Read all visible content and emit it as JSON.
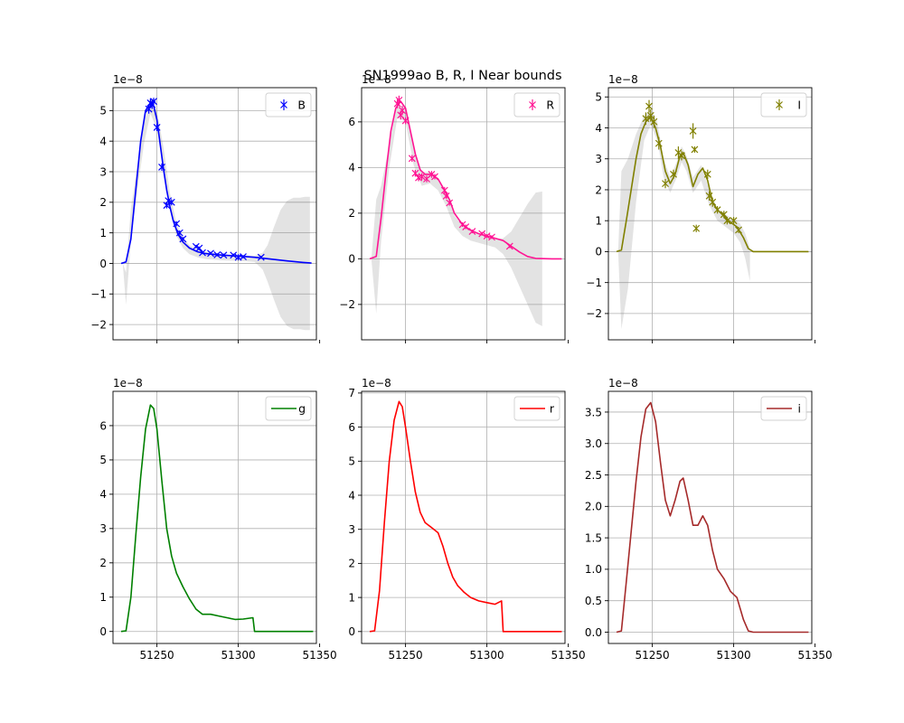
{
  "figure": {
    "title": "SN1999ao  B, R, I Near bounds"
  },
  "chart_data": [
    {
      "type": "line",
      "legend": {
        "label": "B",
        "marker": "errorbar-x",
        "location": "upper right"
      },
      "color": "#0000ff",
      "offset_text": "1e−8",
      "xlim": [
        51223,
        51348
      ],
      "ylim": [
        -2.5,
        5.75
      ],
      "xticks": [
        51250,
        51300,
        51350
      ],
      "xtick_labels": [
        "",
        "",
        ""
      ],
      "yticks": [
        -2,
        -1,
        0,
        1,
        2,
        3,
        4,
        5
      ],
      "ytick_labels": [
        "−2",
        "−1",
        "0",
        "1",
        "2",
        "3",
        "4",
        "5"
      ],
      "grid": true,
      "band": {
        "x": [
          51229,
          51231,
          51234,
          51238,
          51242,
          51246,
          51250,
          51254,
          51258,
          51262,
          51266,
          51270,
          51275,
          51280,
          51285,
          51290,
          51295,
          51300,
          51305,
          51310,
          51315,
          51318,
          51322,
          51326,
          51330,
          51334,
          51338,
          51341,
          51344
        ],
        "upper": [
          0.0,
          -0.3,
          1.8,
          3.2,
          4.6,
          5.4,
          5.0,
          3.8,
          2.3,
          1.3,
          0.85,
          0.6,
          0.45,
          0.38,
          0.33,
          0.3,
          0.28,
          0.27,
          0.26,
          0.25,
          0.35,
          0.6,
          1.2,
          1.75,
          2.05,
          2.15,
          2.15,
          2.18,
          2.18
        ],
        "lower": [
          0.0,
          -1.35,
          0.7,
          2.4,
          3.9,
          4.9,
          4.4,
          3.2,
          1.8,
          0.9,
          0.5,
          0.3,
          0.2,
          0.14,
          0.12,
          0.1,
          0.09,
          0.08,
          0.07,
          0.05,
          -0.2,
          -0.6,
          -1.2,
          -1.75,
          -2.05,
          -2.15,
          -2.15,
          -2.18,
          -2.18
        ]
      },
      "line": {
        "x": [
          51228,
          51231,
          51234,
          51237,
          51240,
          51243,
          51246,
          51248,
          51250,
          51252,
          51254,
          51256,
          51258,
          51260,
          51263,
          51266,
          51270,
          51275,
          51280,
          51290,
          51300,
          51310,
          51320,
          51330,
          51340,
          51345
        ],
        "y": [
          0.0,
          0.05,
          0.8,
          2.4,
          4.0,
          5.0,
          5.25,
          5.15,
          4.7,
          3.9,
          3.1,
          2.4,
          1.85,
          1.4,
          0.95,
          0.7,
          0.5,
          0.38,
          0.32,
          0.27,
          0.24,
          0.2,
          0.14,
          0.08,
          0.03,
          0.01
        ]
      },
      "points": {
        "x": [
          51245,
          51246,
          51247,
          51248,
          51250,
          51253,
          51256,
          51257,
          51259,
          51262,
          51264,
          51266,
          51274,
          51276,
          51278,
          51283,
          51287,
          51291,
          51297,
          51300,
          51303,
          51314
        ],
        "y": [
          5.05,
          5.25,
          5.2,
          5.3,
          4.45,
          3.15,
          1.9,
          2.05,
          2.0,
          1.3,
          1.0,
          0.8,
          0.55,
          0.5,
          0.35,
          0.33,
          0.28,
          0.27,
          0.27,
          0.2,
          0.22,
          0.2
        ],
        "err": [
          0.15,
          0.15,
          0.15,
          0.12,
          0.12,
          0.12,
          0.1,
          0.1,
          0.1,
          0.08,
          0.08,
          0.06,
          0.05,
          0.05,
          0.05,
          0.05,
          0.05,
          0.05,
          0.05,
          0.1,
          0.05,
          0.05
        ]
      }
    },
    {
      "type": "line",
      "legend": {
        "label": "R",
        "marker": "errorbar-x",
        "location": "upper right"
      },
      "color": "#ff1493",
      "offset_text": "1e−8",
      "xlim": [
        51223,
        51348
      ],
      "ylim": [
        -3.55,
        7.5
      ],
      "xticks": [
        51250,
        51300,
        51350
      ],
      "xtick_labels": [
        "",
        "",
        ""
      ],
      "yticks": [
        -2,
        0,
        2,
        4,
        6
      ],
      "ytick_labels": [
        "−2",
        "0",
        "2",
        "4",
        "6"
      ],
      "grid": true,
      "band": {
        "x": [
          51229,
          51232,
          51235,
          51240,
          51245,
          51250,
          51255,
          51260,
          51265,
          51270,
          51275,
          51280,
          51285,
          51290,
          51295,
          51300,
          51305,
          51310,
          51315,
          51320,
          51325,
          51330,
          51334
        ],
        "upper": [
          0.0,
          2.6,
          3.2,
          5.0,
          6.8,
          6.6,
          4.8,
          3.8,
          3.8,
          3.5,
          2.9,
          1.9,
          1.45,
          1.25,
          1.1,
          0.95,
          0.85,
          0.9,
          1.2,
          1.8,
          2.4,
          2.9,
          2.95
        ],
        "lower": [
          0.0,
          -2.4,
          0.8,
          4.0,
          6.2,
          6.0,
          4.1,
          3.2,
          3.3,
          3.0,
          2.3,
          1.4,
          1.0,
          0.8,
          0.7,
          0.6,
          0.5,
          0.2,
          -0.4,
          -1.2,
          -2.0,
          -2.8,
          -2.95
        ]
      },
      "line": {
        "x": [
          51228,
          51232,
          51235,
          51238,
          51241,
          51244,
          51247,
          51250,
          51253,
          51256,
          51259,
          51262,
          51266,
          51270,
          51274,
          51277,
          51280,
          51285,
          51290,
          51295,
          51300,
          51305,
          51310,
          51315,
          51320,
          51325,
          51330,
          51340,
          51346
        ],
        "y": [
          0.0,
          0.1,
          1.8,
          3.8,
          5.6,
          6.6,
          6.9,
          6.6,
          5.6,
          4.6,
          3.9,
          3.7,
          3.7,
          3.5,
          3.0,
          2.6,
          2.0,
          1.5,
          1.25,
          1.1,
          1.0,
          0.9,
          0.8,
          0.55,
          0.3,
          0.1,
          0.02,
          0.0,
          0.0
        ]
      },
      "points": {
        "x": [
          51245,
          51246,
          51247,
          51248,
          51250,
          51254,
          51256,
          51258,
          51260,
          51263,
          51266,
          51268,
          51274,
          51275,
          51277,
          51285,
          51287,
          51291,
          51297,
          51300,
          51303,
          51314
        ],
        "y": [
          6.8,
          6.95,
          6.3,
          6.5,
          6.05,
          4.4,
          3.75,
          3.55,
          3.6,
          3.5,
          3.7,
          3.6,
          3.0,
          2.75,
          2.45,
          1.5,
          1.4,
          1.2,
          1.1,
          1.0,
          0.95,
          0.55
        ],
        "err": [
          0.2,
          0.2,
          0.2,
          0.2,
          0.15,
          0.15,
          0.15,
          0.15,
          0.15,
          0.15,
          0.15,
          0.12,
          0.15,
          0.12,
          0.12,
          0.1,
          0.1,
          0.08,
          0.08,
          0.08,
          0.08,
          0.08
        ]
      }
    },
    {
      "type": "line",
      "legend": {
        "label": "I",
        "marker": "errorbar-x",
        "location": "upper right"
      },
      "color": "#808000",
      "offset_text": "1e−8",
      "xlim": [
        51223,
        51348
      ],
      "ylim": [
        -2.85,
        5.3
      ],
      "xticks": [
        51250,
        51300,
        51350
      ],
      "xtick_labels": [
        "",
        "",
        ""
      ],
      "yticks": [
        -2,
        -1,
        0,
        1,
        2,
        3,
        4,
        5
      ],
      "ytick_labels": [
        "−2",
        "−1",
        "0",
        "1",
        "2",
        "3",
        "4",
        "5"
      ],
      "grid": true,
      "band": {
        "x": [
          51229,
          51231,
          51235,
          51240,
          51245,
          51249,
          51253,
          51257,
          51261,
          51265,
          51268,
          51271,
          51275,
          51280,
          51285,
          51290,
          51295,
          51300,
          51304,
          51307,
          51310
        ],
        "upper": [
          0.0,
          2.6,
          3.0,
          3.8,
          4.4,
          4.6,
          4.2,
          3.0,
          2.4,
          2.9,
          3.4,
          3.1,
          2.4,
          2.8,
          2.0,
          1.4,
          1.2,
          1.05,
          0.9,
          0.6,
          0.1
        ],
        "lower": [
          0.0,
          -2.5,
          -1.2,
          1.6,
          3.6,
          4.1,
          3.6,
          2.4,
          1.9,
          2.4,
          2.9,
          2.6,
          1.9,
          2.3,
          1.5,
          1.0,
          0.8,
          0.6,
          0.3,
          -0.2,
          -0.95
        ]
      },
      "line": {
        "x": [
          51228,
          51231,
          51234,
          51237,
          51240,
          51243,
          51246,
          51249,
          51252,
          51255,
          51258,
          51261,
          51264,
          51267,
          51269,
          51272,
          51275,
          51278,
          51281,
          51284,
          51287,
          51290,
          51294,
          51298,
          51302,
          51306,
          51309,
          51312,
          51320,
          51335,
          51346
        ],
        "y": [
          0.0,
          0.05,
          1.0,
          2.0,
          3.0,
          3.8,
          4.2,
          4.35,
          4.0,
          3.4,
          2.6,
          2.2,
          2.5,
          3.1,
          3.2,
          2.8,
          2.1,
          2.5,
          2.7,
          2.3,
          1.6,
          1.35,
          1.15,
          0.95,
          0.8,
          0.45,
          0.1,
          0.0,
          0.0,
          0.0,
          0.0
        ]
      },
      "points": {
        "x": [
          51246,
          51248,
          51249,
          51251,
          51254,
          51258,
          51263,
          51266,
          51268,
          51275,
          51276,
          51277,
          51284,
          51285,
          51287,
          51290,
          51294,
          51296,
          51300,
          51303
        ],
        "y": [
          4.3,
          4.7,
          4.4,
          4.2,
          3.5,
          2.2,
          2.5,
          3.2,
          3.1,
          3.9,
          3.3,
          0.75,
          2.5,
          1.8,
          1.6,
          1.35,
          1.2,
          1.0,
          1.0,
          0.7
        ],
        "err": [
          0.2,
          0.2,
          0.2,
          0.2,
          0.2,
          0.15,
          0.15,
          0.2,
          0.15,
          0.25,
          0.1,
          0.12,
          0.15,
          0.15,
          0.15,
          0.12,
          0.12,
          0.12,
          0.12,
          0.1
        ]
      }
    },
    {
      "type": "line",
      "legend": {
        "label": "g",
        "marker": "line",
        "location": "upper right"
      },
      "color": "#008000",
      "offset_text": "1e−8",
      "xlim": [
        51223,
        51348
      ],
      "ylim": [
        -0.35,
        7.0
      ],
      "xticks": [
        51250,
        51300,
        51350
      ],
      "xtick_labels": [
        "51250",
        "51300",
        "51350"
      ],
      "yticks": [
        0,
        1,
        2,
        3,
        4,
        5,
        6
      ],
      "ytick_labels": [
        "0",
        "1",
        "2",
        "3",
        "4",
        "5",
        "6"
      ],
      "grid": true,
      "line": {
        "x": [
          51228,
          51231,
          51234,
          51237,
          51240,
          51243,
          51246,
          51248,
          51250,
          51253,
          51256,
          51259,
          51262,
          51266,
          51270,
          51274,
          51278,
          51283,
          51288,
          51293,
          51298,
          51303,
          51309,
          51310.01,
          51320,
          51346
        ],
        "y": [
          0.0,
          0.02,
          1.0,
          2.8,
          4.5,
          5.9,
          6.6,
          6.5,
          5.9,
          4.4,
          3.0,
          2.2,
          1.7,
          1.3,
          0.95,
          0.65,
          0.5,
          0.5,
          0.45,
          0.4,
          0.35,
          0.36,
          0.4,
          0.0,
          0.0,
          0.0
        ]
      }
    },
    {
      "type": "line",
      "legend": {
        "label": "r",
        "marker": "line",
        "location": "upper right"
      },
      "color": "#ff0000",
      "offset_text": "1e−8",
      "xlim": [
        51223,
        51348
      ],
      "ylim": [
        -0.35,
        7.05
      ],
      "xticks": [
        51250,
        51300,
        51350
      ],
      "xtick_labels": [
        "51250",
        "51300",
        "51350"
      ],
      "yticks": [
        0,
        1,
        2,
        3,
        4,
        5,
        6,
        7
      ],
      "ytick_labels": [
        "0",
        "1",
        "2",
        "3",
        "4",
        "5",
        "6",
        "7"
      ],
      "grid": true,
      "line": {
        "x": [
          51228,
          51231,
          51234,
          51237,
          51240,
          51243,
          51246,
          51248,
          51250,
          51253,
          51256,
          51259,
          51262,
          51266,
          51270,
          51273,
          51276,
          51279,
          51282,
          51286,
          51290,
          51295,
          51300,
          51305,
          51309,
          51310.01,
          51320,
          51346
        ],
        "y": [
          0.0,
          0.02,
          1.2,
          3.2,
          5.0,
          6.2,
          6.75,
          6.6,
          6.0,
          5.0,
          4.1,
          3.5,
          3.2,
          3.05,
          2.9,
          2.5,
          2.0,
          1.6,
          1.35,
          1.15,
          1.0,
          0.9,
          0.85,
          0.8,
          0.9,
          0.0,
          0.0,
          0.0
        ]
      }
    },
    {
      "type": "line",
      "legend": {
        "label": "i",
        "marker": "line",
        "location": "upper right"
      },
      "color": "#a52a2a",
      "offset_text": "1e−8",
      "xlim": [
        51223,
        51348
      ],
      "ylim": [
        -0.18,
        3.83
      ],
      "xticks": [
        51250,
        51300,
        51350
      ],
      "xtick_labels": [
        "51250",
        "51300",
        "51350"
      ],
      "yticks": [
        0.0,
        0.5,
        1.0,
        1.5,
        2.0,
        2.5,
        3.0,
        3.5
      ],
      "ytick_labels": [
        "0.0",
        "0.5",
        "1.0",
        "1.5",
        "2.0",
        "2.5",
        "3.0",
        "3.5"
      ],
      "grid": true,
      "line": {
        "x": [
          51228,
          51231,
          51234,
          51237,
          51240,
          51243,
          51246,
          51249,
          51252,
          51255,
          51258,
          51261,
          51264,
          51267,
          51269,
          51272,
          51275,
          51278,
          51281,
          51284,
          51287,
          51290,
          51294,
          51298,
          51302,
          51306,
          51309,
          51312,
          51320,
          51346
        ],
        "y": [
          0.0,
          0.02,
          0.8,
          1.6,
          2.4,
          3.1,
          3.55,
          3.65,
          3.35,
          2.7,
          2.1,
          1.85,
          2.1,
          2.4,
          2.45,
          2.1,
          1.7,
          1.7,
          1.85,
          1.7,
          1.3,
          1.0,
          0.85,
          0.65,
          0.55,
          0.2,
          0.02,
          0.0,
          0.0,
          0.0
        ]
      }
    }
  ]
}
